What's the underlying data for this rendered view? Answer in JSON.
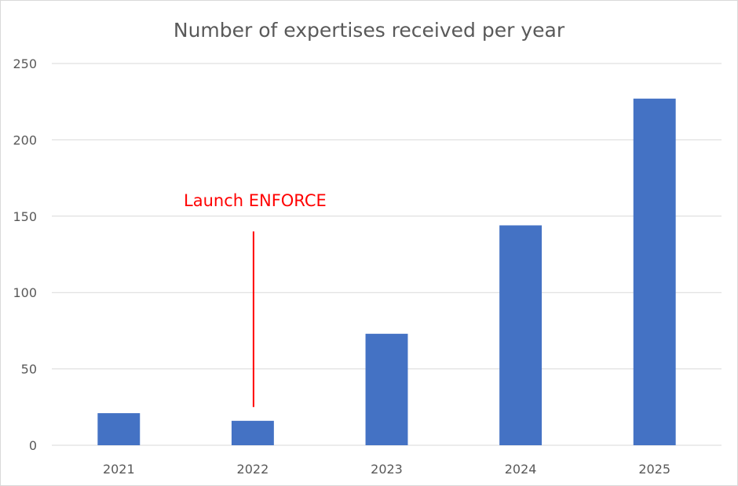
{
  "chart_data": {
    "type": "bar",
    "title": "Number of expertises received per year",
    "categories": [
      "2021",
      "2022",
      "2023",
      "2024",
      "2025"
    ],
    "values": [
      21,
      16,
      73,
      144,
      227
    ],
    "xlabel": "",
    "ylabel": "",
    "ylim": [
      0,
      250
    ],
    "yticks": [
      "0",
      "50",
      "100",
      "150",
      "200",
      "250"
    ],
    "grid": true,
    "legend": "none",
    "bar_color": "#4472C4",
    "grid_color": "#D9D9D9",
    "annotation": {
      "text": "Launch ENFORCE",
      "category": "2022",
      "line_from_value": 140,
      "line_to_value": 25,
      "color": "#FF0000"
    }
  }
}
